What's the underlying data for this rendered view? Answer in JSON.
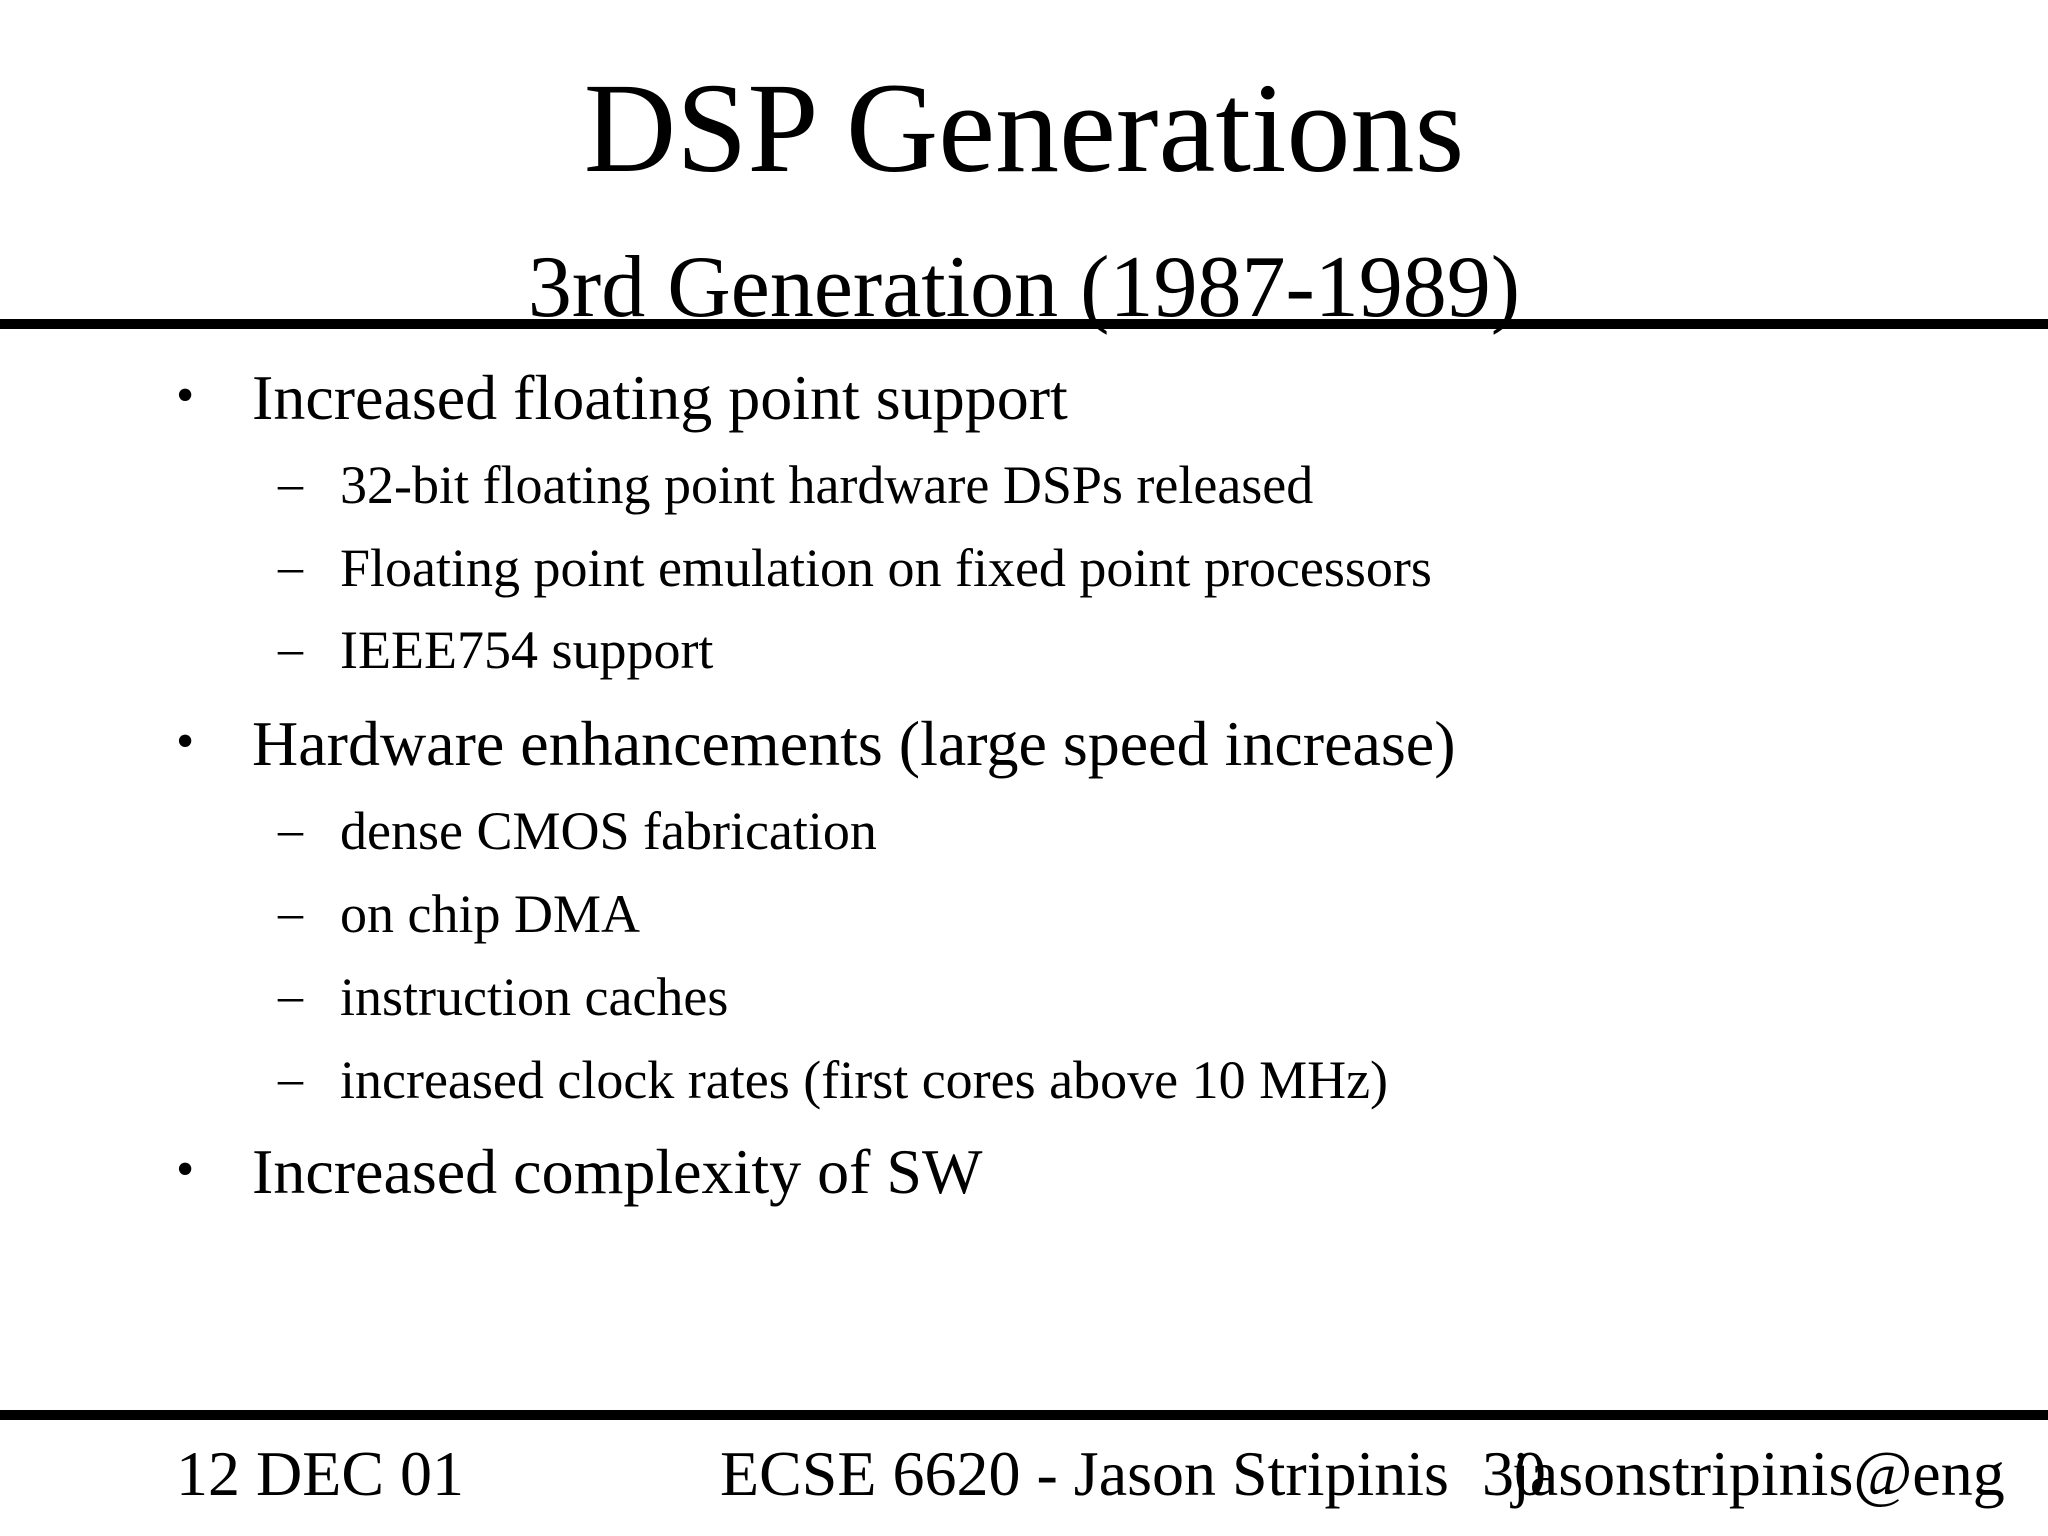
{
  "slide": {
    "title": "DSP Generations",
    "subtitle": "3rd Generation (1987-1989)"
  },
  "bullets": [
    {
      "marker": "•",
      "text": "Increased floating point support"
    },
    {
      "marker": "–",
      "text": "32-bit floating point hardware DSPs released"
    },
    {
      "marker": "–",
      "text": "Floating point emulation on fixed point processors"
    },
    {
      "marker": "–",
      "text": "IEEE754 support"
    },
    {
      "marker": "•",
      "text": "Hardware enhancements (large speed increase)"
    },
    {
      "marker": "–",
      "text": "dense CMOS fabrication"
    },
    {
      "marker": "–",
      "text": "on chip DMA"
    },
    {
      "marker": "–",
      "text": "instruction caches"
    },
    {
      "marker": "–",
      "text": "increased clock rates (first cores above 10 MHz)"
    },
    {
      "marker": "•",
      "text": "Increased complexity of SW"
    }
  ],
  "footer": {
    "date": "12 DEC 01",
    "course": "ECSE 6620 - Jason Stripinis",
    "page_number": "30",
    "email": "jasonstripinis@eng"
  }
}
